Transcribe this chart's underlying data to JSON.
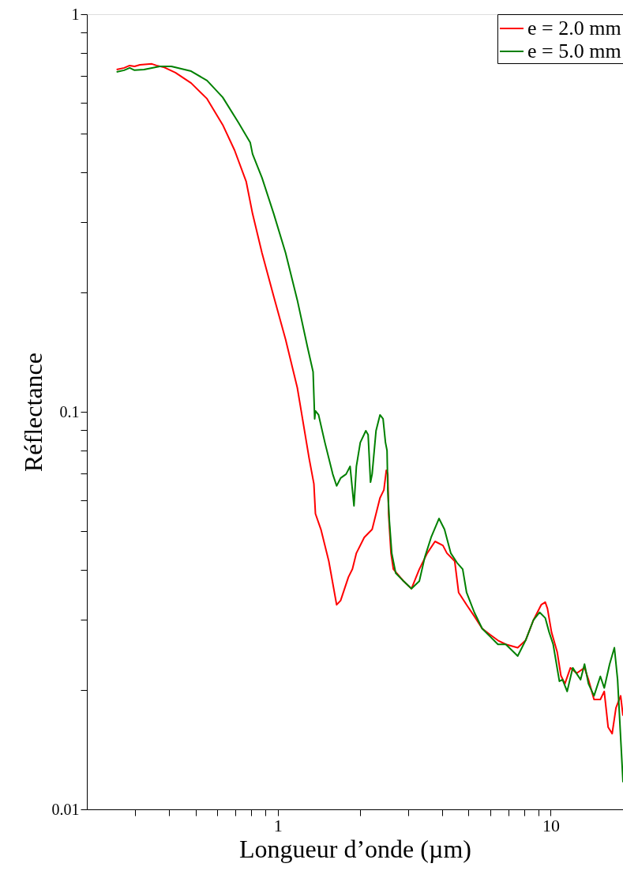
{
  "chart_data": {
    "type": "line",
    "xlabel": "Longueur d’onde (µm)",
    "ylabel": "Réflectance",
    "log": "xy",
    "legend": "top right",
    "grid": false,
    "marker": "none",
    "line_style": "solid",
    "xlim": [
      0.2,
      18.4
    ],
    "ylim": [
      0.01,
      1
    ],
    "xticks": [
      {
        "value": 0.3,
        "label": null
      },
      {
        "value": 0.4,
        "label": null
      },
      {
        "value": 0.5,
        "label": null
      },
      {
        "value": 0.6,
        "label": null
      },
      {
        "value": 0.7,
        "label": null
      },
      {
        "value": 0.8,
        "label": null
      },
      {
        "value": 0.9,
        "label": null
      },
      1,
      {
        "value": 2,
        "label": null
      },
      {
        "value": 3,
        "label": null
      },
      {
        "value": 4,
        "label": null
      },
      {
        "value": 5,
        "label": null
      },
      {
        "value": 6,
        "label": null
      },
      {
        "value": 7,
        "label": null
      },
      {
        "value": 8,
        "label": null
      },
      {
        "value": 9,
        "label": null
      },
      10
    ],
    "yticks": [
      0.01,
      {
        "value": 0.02,
        "label": null
      },
      {
        "value": 0.03,
        "label": null
      },
      {
        "value": 0.04,
        "label": null
      },
      {
        "value": 0.05,
        "label": null
      },
      {
        "value": 0.06,
        "label": null
      },
      {
        "value": 0.07,
        "label": null
      },
      {
        "value": 0.08,
        "label": null
      },
      {
        "value": 0.09,
        "label": null
      },
      0.1,
      {
        "value": 0.2,
        "label": null
      },
      {
        "value": 0.3,
        "label": null
      },
      {
        "value": 0.4,
        "label": null
      },
      {
        "value": 0.5,
        "label": null
      },
      {
        "value": 0.6,
        "label": null
      },
      {
        "value": 0.7,
        "label": null
      },
      {
        "value": 0.8,
        "label": null
      },
      {
        "value": 0.9,
        "label": null
      },
      1
    ],
    "series": [
      {
        "name": "e = 2.0 mm",
        "color": "#ff0000",
        "x": [
          0.257,
          0.274,
          0.287,
          0.299,
          0.313,
          0.346,
          0.36,
          0.382,
          0.422,
          0.482,
          0.551,
          0.629,
          0.695,
          0.767,
          0.809,
          0.876,
          0.967,
          1.069,
          1.18,
          1.304,
          1.357,
          1.375,
          1.44,
          1.539,
          1.644,
          1.7,
          1.816,
          1.878,
          1.942,
          2.075,
          2.218,
          2.37,
          2.449,
          2.5,
          2.531,
          2.548,
          2.6,
          2.653,
          2.891,
          3.09,
          3.302,
          3.53,
          3.77,
          4.029,
          4.167,
          4.45,
          4.6,
          4.92,
          5.25,
          5.61,
          6.0,
          6.41,
          6.85,
          7.57,
          8.09,
          8.64,
          9.23,
          9.55,
          9.73,
          10.07,
          10.56,
          10.9,
          11.27,
          11.81,
          12.45,
          13.3,
          13.75,
          14.41,
          15.2,
          15.71,
          16.23,
          16.79,
          17.34,
          18.04,
          18.4
        ],
        "values": [
          0.726,
          0.733,
          0.743,
          0.739,
          0.746,
          0.75,
          0.743,
          0.736,
          0.713,
          0.671,
          0.613,
          0.527,
          0.455,
          0.379,
          0.315,
          0.251,
          0.195,
          0.152,
          0.115,
          0.0763,
          0.0659,
          0.0554,
          0.0506,
          0.0421,
          0.0327,
          0.0335,
          0.0384,
          0.0402,
          0.0441,
          0.0483,
          0.0506,
          0.0607,
          0.0636,
          0.0713,
          0.0697,
          0.0554,
          0.0441,
          0.0402,
          0.0375,
          0.0359,
          0.0402,
          0.0441,
          0.0472,
          0.0461,
          0.0441,
          0.0421,
          0.0351,
          0.0327,
          0.0306,
          0.0285,
          0.0275,
          0.0266,
          0.026,
          0.0255,
          0.0266,
          0.0299,
          0.0327,
          0.0332,
          0.032,
          0.0279,
          0.0249,
          0.0217,
          0.0207,
          0.0227,
          0.022,
          0.0227,
          0.0212,
          0.0189,
          0.0189,
          0.0198,
          0.0161,
          0.0155,
          0.018,
          0.0193,
          0.0172
        ]
      },
      {
        "name": "e = 5.0 mm",
        "color": "#008000",
        "x": [
          0.257,
          0.274,
          0.287,
          0.299,
          0.324,
          0.37,
          0.408,
          0.482,
          0.551,
          0.629,
          0.718,
          0.793,
          0.809,
          0.876,
          0.967,
          1.069,
          1.18,
          1.287,
          1.348,
          1.357,
          1.366,
          1.375,
          1.412,
          1.489,
          1.591,
          1.644,
          1.7,
          1.781,
          1.842,
          1.878,
          1.903,
          1.942,
          2.007,
          2.103,
          2.144,
          2.188,
          2.218,
          2.292,
          2.37,
          2.432,
          2.482,
          2.515,
          2.531,
          2.566,
          2.617,
          2.705,
          2.891,
          3.09,
          3.302,
          3.459,
          3.647,
          3.898,
          4.083,
          4.305,
          4.54,
          4.76,
          4.92,
          5.25,
          5.61,
          6.0,
          6.41,
          6.85,
          7.57,
          8.09,
          8.64,
          9.11,
          9.55,
          9.87,
          10.21,
          10.76,
          11.05,
          11.49,
          12.04,
          12.87,
          13.3,
          13.75,
          14.41,
          15.2,
          15.71,
          16.44,
          17.11,
          17.58,
          18.4
        ],
        "values": [
          0.716,
          0.723,
          0.733,
          0.723,
          0.726,
          0.739,
          0.739,
          0.719,
          0.681,
          0.618,
          0.534,
          0.476,
          0.445,
          0.388,
          0.315,
          0.251,
          0.191,
          0.145,
          0.126,
          0.11,
          0.096,
          0.1005,
          0.0982,
          0.0837,
          0.0697,
          0.0651,
          0.0681,
          0.0697,
          0.0729,
          0.0636,
          0.058,
          0.0729,
          0.0837,
          0.0896,
          0.0876,
          0.0665,
          0.0697,
          0.0896,
          0.0982,
          0.096,
          0.0837,
          0.0799,
          0.0636,
          0.053,
          0.0441,
          0.0393,
          0.0375,
          0.0359,
          0.0375,
          0.0431,
          0.0483,
          0.0539,
          0.0506,
          0.0441,
          0.0417,
          0.0402,
          0.0351,
          0.0313,
          0.0285,
          0.0272,
          0.026,
          0.026,
          0.0243,
          0.0266,
          0.0299,
          0.0313,
          0.0303,
          0.0279,
          0.026,
          0.021,
          0.0212,
          0.0198,
          0.0227,
          0.0212,
          0.0232,
          0.0207,
          0.0193,
          0.0216,
          0.0202,
          0.0232,
          0.0255,
          0.0212,
          0.0117
        ]
      }
    ]
  }
}
